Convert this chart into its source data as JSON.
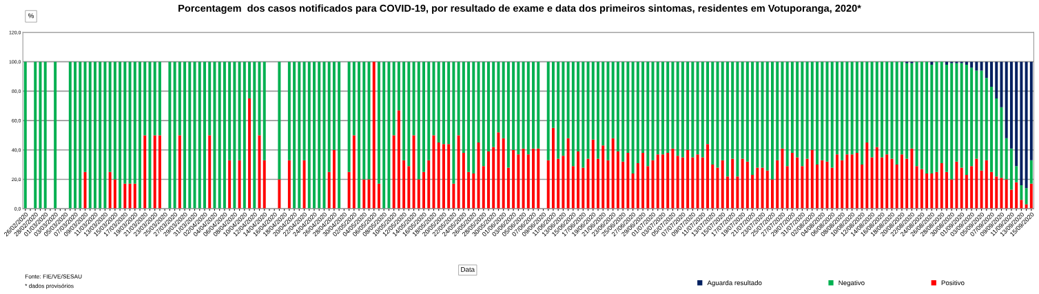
{
  "chart_data": {
    "type": "bar",
    "stacked": true,
    "title": "Porcentagem  dos casos notificados para COVID-19, por resultado de exame e data dos primeiros sintomas, residentes em Votuporanga, 2020*",
    "ylabel": "%",
    "xlabel": "Data",
    "annotations": [
      "Fonte: FIE/VE/SESAU",
      "* dados provisórios"
    ],
    "categories": [
      "26/02/2020",
      null,
      "28/02/2020",
      null,
      "01/03/2020",
      null,
      "03/03/2020",
      null,
      "05/03/2020",
      null,
      "07/03/2020",
      null,
      "09/03/2020",
      null,
      "11/03/2020",
      null,
      "13/03/2020",
      null,
      "15/03/2020",
      null,
      "17/03/2020",
      null,
      "19/03/2020",
      null,
      "21/03/2020",
      null,
      "23/03/2020",
      null,
      "25/03/2020",
      null,
      "27/03/2020",
      null,
      "29/03/2020",
      null,
      "31/03/2020",
      null,
      "02/04/2020",
      null,
      "04/04/2020",
      null,
      "06/04/2020",
      null,
      "08/04/2020",
      null,
      "10/04/2020",
      null,
      "12/04/2020",
      null,
      "14/04/2020",
      null,
      "16/04/2020",
      null,
      "18/04/2020",
      null,
      "20/04/2020",
      null,
      "22/04/2020",
      null,
      "24/04/2020",
      null,
      "26/04/2020",
      null,
      "28/04/2020",
      null,
      "30/04/2020",
      null,
      "02/05/2020",
      null,
      "04/05/2020",
      null,
      "06/05/2020",
      null,
      "08/05/2020",
      null,
      "10/05/2020",
      null,
      "12/05/2020",
      null,
      "14/05/2020",
      null,
      "16/05/2020",
      null,
      "18/05/2020",
      null,
      "20/05/2020",
      null,
      "22/05/2020",
      null,
      "24/05/2020",
      null,
      "26/05/2020",
      null,
      "28/05/2020",
      null,
      "30/05/2020",
      null,
      "01/06/2020",
      null,
      "03/06/2020",
      null,
      "05/06/2020",
      null,
      "07/06/2020",
      null,
      "09/06/2020",
      null,
      "11/06/2020",
      null,
      "13/06/2020",
      null,
      "15/06/2020",
      null,
      "17/06/2020",
      null,
      "19/06/2020",
      null,
      "21/06/2020",
      null,
      "23/06/2020",
      null,
      "25/06/2020",
      null,
      "27/06/2020",
      null,
      "29/06/2020",
      null,
      "01/07/2020",
      null,
      "03/07/2020",
      null,
      "05/07/2020",
      null,
      "07/07/2020",
      null,
      "09/07/2020",
      null,
      "11/07/2020",
      null,
      "13/07/2020",
      null,
      "15/07/2020",
      null,
      "17/07/2020",
      null,
      "19/07/2020",
      null,
      "21/07/2020",
      null,
      "23/07/2020",
      null,
      "25/07/2020",
      null,
      "27/07/2020",
      null,
      "29/07/2020",
      null,
      "31/07/2020",
      null,
      "02/08/2020",
      null,
      "04/08/2020",
      null,
      "06/08/2020",
      null,
      "08/08/2020",
      null,
      "10/08/2020",
      null,
      "12/08/2020",
      null,
      "14/08/2020",
      null,
      "16/08/2020",
      null,
      "18/08/2020",
      null,
      "20/08/2020",
      null,
      "22/08/2020",
      null,
      "24/08/2020",
      null,
      "26/08/2020",
      null,
      "28/08/2020",
      null,
      "30/08/2020",
      null,
      "01/09/2020",
      null,
      "03/09/2020",
      null,
      "05/09/2020",
      null,
      "07/09/2020",
      null,
      "09/09/2020",
      null,
      "11/09/2020",
      null,
      "13/09/2020",
      null,
      "15/09/2020"
    ],
    "series": [
      {
        "name": "Positivo",
        "color": "#ff0000",
        "values": [
          0,
          null,
          0,
          0,
          0,
          null,
          0,
          null,
          null,
          0,
          0,
          0,
          25,
          0,
          0,
          0,
          0,
          25,
          20,
          0,
          17,
          17,
          17,
          0,
          50,
          0,
          50,
          50,
          null,
          0,
          0,
          50,
          0,
          0,
          0,
          0,
          0,
          50,
          0,
          0,
          0,
          33,
          0,
          33,
          0,
          75,
          0,
          50,
          33,
          null,
          null,
          20,
          null,
          33,
          0,
          0,
          33,
          0,
          0,
          0,
          0,
          25,
          40,
          0,
          null,
          25,
          50,
          0,
          20,
          20,
          100,
          17,
          0,
          0,
          50,
          67,
          33,
          29,
          50,
          20,
          25,
          33,
          50,
          45,
          44,
          44,
          17,
          50,
          38,
          25,
          24,
          45,
          29,
          39,
          42,
          52,
          48,
          28,
          40,
          37,
          41,
          37,
          41,
          41,
          null,
          33,
          55,
          34,
          36,
          48,
          29,
          39,
          28,
          34,
          47,
          34,
          43,
          33,
          48,
          39,
          32,
          38,
          24,
          31,
          38,
          29,
          33,
          37,
          37,
          38,
          41,
          36,
          35,
          40,
          35,
          37,
          35,
          44,
          30,
          28,
          33,
          22,
          34,
          22,
          34,
          32,
          23,
          28,
          28,
          26,
          20,
          33,
          41,
          29,
          38,
          35,
          29,
          34,
          40,
          30,
          33,
          32,
          28,
          37,
          33,
          37,
          37,
          38,
          30,
          45,
          35,
          42,
          35,
          37,
          34,
          30,
          37,
          34,
          41,
          29,
          27,
          24,
          24,
          25,
          31,
          25,
          20,
          32,
          28,
          23,
          29,
          34,
          26,
          33,
          25,
          22,
          21,
          20,
          13,
          18,
          6,
          3,
          17
        ]
      },
      {
        "name": "Negativo",
        "color": "#00b050",
        "values": [
          100,
          null,
          100,
          100,
          100,
          null,
          100,
          null,
          null,
          100,
          100,
          100,
          75,
          100,
          100,
          100,
          100,
          75,
          80,
          100,
          83,
          83,
          83,
          100,
          50,
          100,
          50,
          50,
          null,
          100,
          100,
          50,
          100,
          100,
          100,
          100,
          100,
          50,
          100,
          100,
          100,
          67,
          100,
          67,
          100,
          25,
          100,
          50,
          67,
          null,
          null,
          80,
          null,
          67,
          100,
          100,
          67,
          100,
          100,
          100,
          100,
          75,
          60,
          100,
          null,
          75,
          50,
          100,
          80,
          80,
          0,
          83,
          100,
          100,
          50,
          33,
          67,
          71,
          50,
          80,
          75,
          67,
          50,
          55,
          56,
          56,
          83,
          50,
          62,
          75,
          76,
          55,
          71,
          61,
          58,
          48,
          52,
          72,
          60,
          63,
          59,
          63,
          59,
          59,
          null,
          67,
          45,
          66,
          64,
          52,
          71,
          61,
          72,
          66,
          53,
          66,
          57,
          67,
          52,
          61,
          68,
          62,
          76,
          69,
          62,
          71,
          67,
          63,
          63,
          62,
          59,
          64,
          65,
          60,
          65,
          63,
          65,
          56,
          70,
          72,
          67,
          78,
          66,
          78,
          66,
          68,
          77,
          72,
          72,
          74,
          80,
          67,
          59,
          71,
          62,
          65,
          71,
          66,
          60,
          70,
          67,
          68,
          72,
          63,
          67,
          63,
          63,
          62,
          70,
          55,
          65,
          58,
          65,
          63,
          66,
          70,
          63,
          65,
          58,
          71,
          73,
          76,
          74,
          75,
          69,
          73,
          79,
          67,
          71,
          75,
          67,
          60,
          68,
          56,
          58,
          53,
          48,
          28,
          28,
          11,
          10,
          11,
          16
        ]
      },
      {
        "name": "Aguarda resultado",
        "color": "#002060",
        "values": [
          null,
          null,
          null,
          null,
          null,
          null,
          null,
          null,
          null,
          null,
          null,
          null,
          null,
          null,
          null,
          null,
          null,
          null,
          null,
          null,
          null,
          null,
          null,
          null,
          null,
          null,
          null,
          null,
          null,
          null,
          null,
          null,
          null,
          null,
          null,
          null,
          null,
          null,
          null,
          null,
          null,
          null,
          null,
          null,
          null,
          null,
          null,
          null,
          null,
          null,
          null,
          null,
          null,
          null,
          null,
          null,
          null,
          null,
          null,
          null,
          null,
          null,
          null,
          null,
          null,
          null,
          null,
          null,
          null,
          null,
          null,
          null,
          null,
          null,
          null,
          null,
          null,
          null,
          null,
          null,
          null,
          null,
          null,
          null,
          null,
          null,
          null,
          null,
          null,
          null,
          null,
          null,
          null,
          null,
          null,
          null,
          null,
          null,
          null,
          null,
          null,
          null,
          null,
          null,
          null,
          null,
          null,
          null,
          null,
          null,
          null,
          null,
          null,
          null,
          null,
          null,
          null,
          null,
          null,
          null,
          null,
          null,
          null,
          null,
          null,
          null,
          null,
          null,
          null,
          null,
          null,
          null,
          null,
          null,
          null,
          null,
          null,
          null,
          null,
          null,
          null,
          null,
          null,
          null,
          null,
          null,
          null,
          null,
          null,
          null,
          null,
          null,
          null,
          null,
          null,
          null,
          null,
          null,
          null,
          null,
          null,
          null,
          null,
          null,
          null,
          null,
          null,
          null,
          null,
          null,
          null,
          null,
          null,
          null,
          null,
          null,
          null,
          1,
          1,
          null,
          null,
          null,
          2,
          null,
          null,
          2,
          1,
          1,
          1,
          2,
          4,
          6,
          6,
          11,
          17,
          25,
          31,
          52,
          59,
          71,
          84,
          86,
          67
        ]
      }
    ],
    "ylim": [
      0,
      120
    ],
    "yticks": [
      {
        "value": 0,
        "label": "0,0"
      },
      {
        "value": 20,
        "label": "20,0"
      },
      {
        "value": 40,
        "label": "40,0"
      },
      {
        "value": 60,
        "label": "60,0"
      },
      {
        "value": 80,
        "label": "80,0"
      },
      {
        "value": 100,
        "label": "100,0"
      },
      {
        "value": 120,
        "label": "120,0"
      }
    ],
    "grid": "y",
    "legend": "bottom right"
  }
}
